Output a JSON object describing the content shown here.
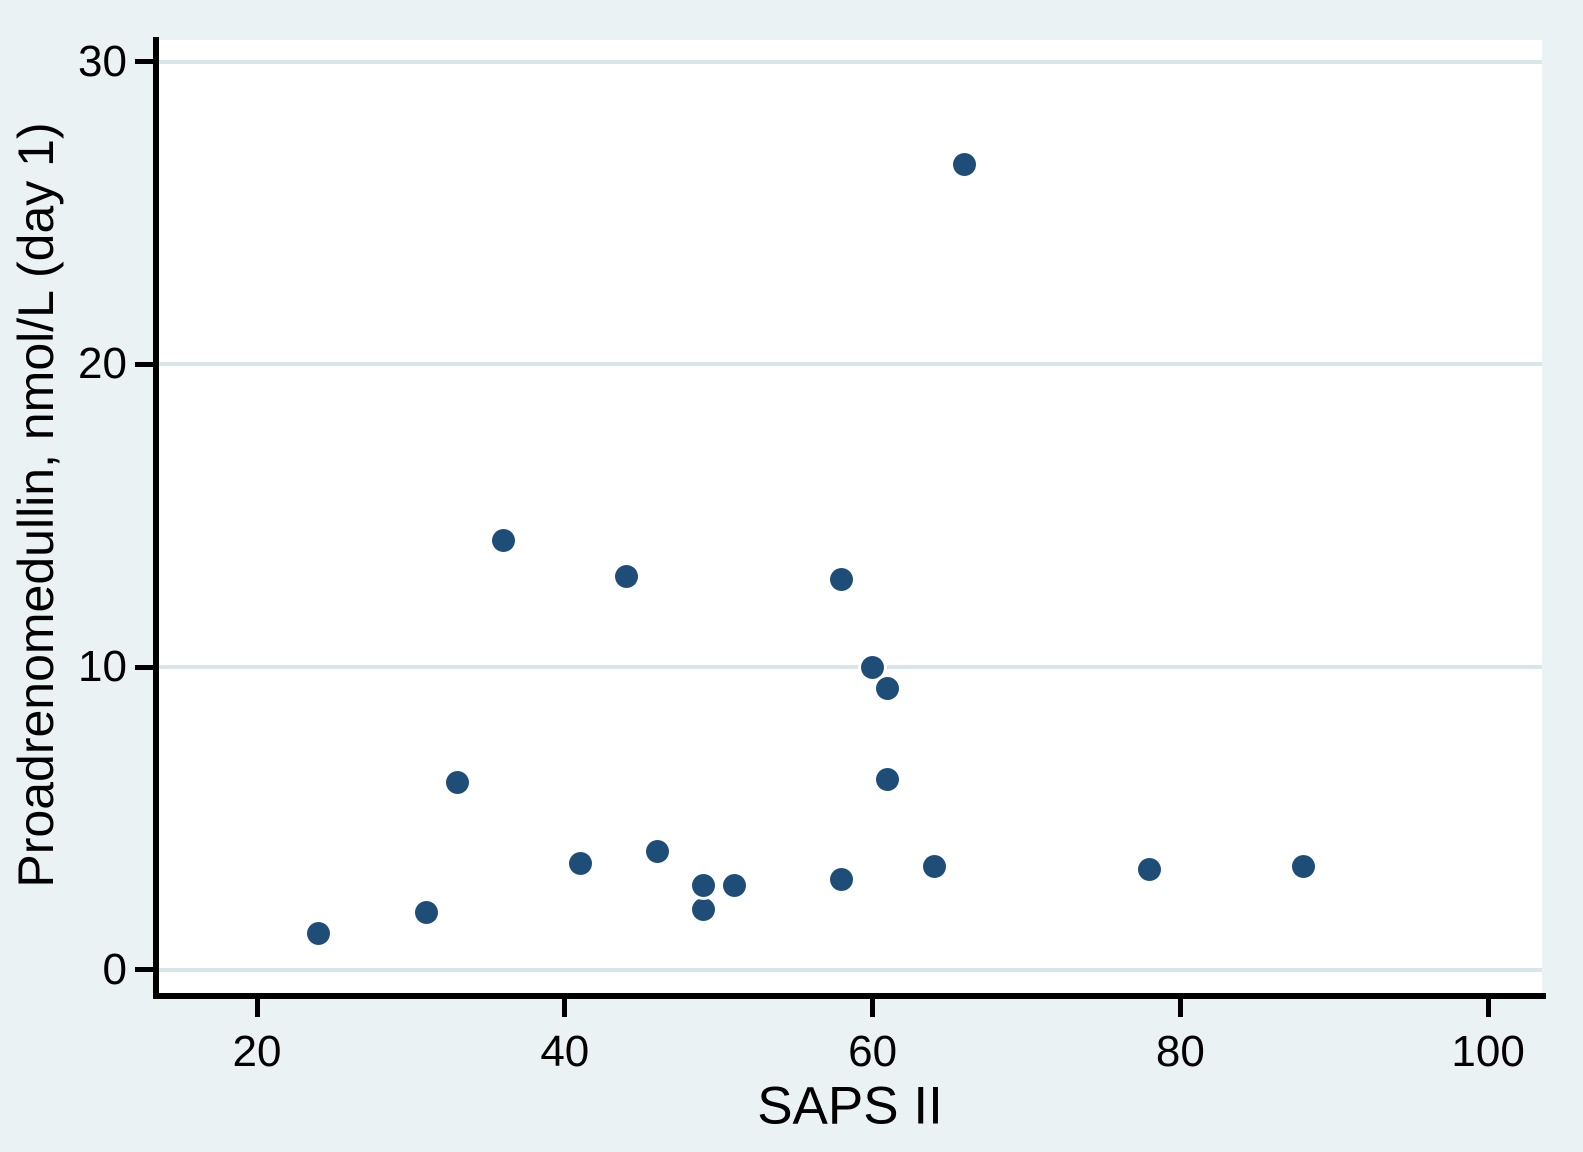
{
  "colors": {
    "page_background": "#eaf2f3",
    "plot_background": "#ffffff",
    "gridline": "#d9e6e9",
    "axis": "#000000",
    "marker": "#1e4e77",
    "text": "#000000"
  },
  "chart_data": {
    "type": "scatter",
    "title": "",
    "xlabel": "SAPS II",
    "ylabel": "Proadrenomedullin, nmol/L (day 1)",
    "xlim": [
      13.5,
      103.5
    ],
    "ylim": [
      -0.83,
      30.72
    ],
    "x_ticks": [
      20,
      40,
      60,
      80,
      100
    ],
    "y_ticks": [
      0,
      10,
      20,
      30
    ],
    "grid": "horizontal-only",
    "legend": "none",
    "points": [
      {
        "x": 24,
        "y": 1.2
      },
      {
        "x": 31,
        "y": 1.9
      },
      {
        "x": 33,
        "y": 6.2
      },
      {
        "x": 36,
        "y": 14.2
      },
      {
        "x": 41,
        "y": 3.5
      },
      {
        "x": 44,
        "y": 13.0
      },
      {
        "x": 46,
        "y": 3.9
      },
      {
        "x": 49,
        "y": 2.0
      },
      {
        "x": 49,
        "y": 2.8
      },
      {
        "x": 51,
        "y": 2.8
      },
      {
        "x": 58,
        "y": 3.0
      },
      {
        "x": 58,
        "y": 12.9
      },
      {
        "x": 60,
        "y": 10.0
      },
      {
        "x": 61,
        "y": 9.3
      },
      {
        "x": 61,
        "y": 6.3
      },
      {
        "x": 64,
        "y": 3.4
      },
      {
        "x": 66,
        "y": 26.6
      },
      {
        "x": 78,
        "y": 3.3
      },
      {
        "x": 88,
        "y": 3.4
      }
    ]
  }
}
